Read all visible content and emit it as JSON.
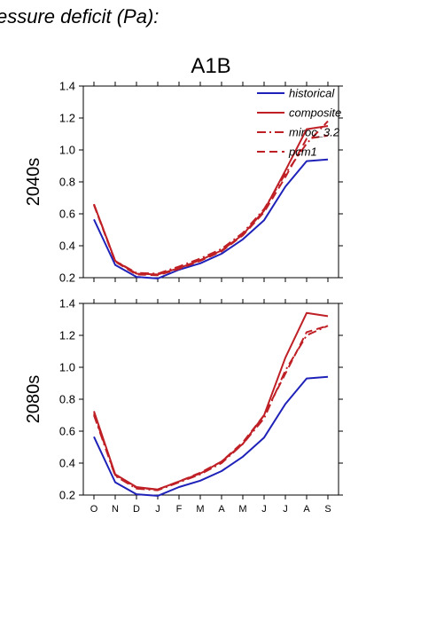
{
  "heading": "essure deficit (Pa):",
  "colors": {
    "historical": "#1f22b8",
    "composite": "#bf2026",
    "miroc_3.2": "#bf2026",
    "pcm1": "#bf2026"
  },
  "chart_data": [
    {
      "type": "line",
      "title": "A1B",
      "ylabel": "2040s",
      "xlabel": "",
      "categories": [
        "O",
        "N",
        "D",
        "J",
        "F",
        "M",
        "A",
        "M",
        "J",
        "J",
        "A",
        "S"
      ],
      "ylim": [
        0.2,
        1.4
      ],
      "yticks": [
        "0.2",
        "0.4",
        "0.6",
        "0.8",
        "1.0",
        "1.2",
        "1.4"
      ],
      "show_x_labels": false,
      "legend": "top-right",
      "grid": false,
      "series": [
        {
          "name": "historical",
          "style": "solid",
          "values": [
            0.565,
            0.28,
            0.205,
            0.195,
            0.25,
            0.29,
            0.35,
            0.44,
            0.56,
            0.77,
            0.93,
            0.94
          ]
        },
        {
          "name": "composite",
          "style": "solid",
          "values": [
            0.66,
            0.305,
            0.225,
            0.22,
            0.26,
            0.31,
            0.37,
            0.47,
            0.62,
            0.87,
            1.13,
            1.15
          ]
        },
        {
          "name": "miroc_3.2",
          "style": "dashdot",
          "values": [
            0.66,
            0.305,
            0.23,
            0.225,
            0.27,
            0.32,
            0.38,
            0.48,
            0.63,
            0.85,
            1.04,
            1.18
          ]
        },
        {
          "name": "pcm1",
          "style": "dashed",
          "values": [
            0.655,
            0.3,
            0.22,
            0.215,
            0.255,
            0.305,
            0.365,
            0.465,
            0.61,
            0.83,
            1.07,
            1.09
          ]
        }
      ]
    },
    {
      "type": "line",
      "title": "",
      "ylabel": "2080s",
      "xlabel": "",
      "categories": [
        "O",
        "N",
        "D",
        "J",
        "F",
        "M",
        "A",
        "M",
        "J",
        "J",
        "A",
        "S"
      ],
      "ylim": [
        0.2,
        1.4
      ],
      "yticks": [
        "0.2",
        "0.4",
        "0.6",
        "0.8",
        "1.0",
        "1.2",
        "1.4"
      ],
      "show_x_labels": true,
      "legend": "none",
      "grid": false,
      "series": [
        {
          "name": "historical",
          "style": "solid",
          "values": [
            0.565,
            0.28,
            0.205,
            0.195,
            0.25,
            0.29,
            0.35,
            0.44,
            0.56,
            0.77,
            0.93,
            0.94
          ]
        },
        {
          "name": "composite",
          "style": "solid",
          "values": [
            0.725,
            0.33,
            0.25,
            0.235,
            0.285,
            0.335,
            0.41,
            0.52,
            0.7,
            1.06,
            1.34,
            1.32
          ]
        },
        {
          "name": "miroc_3.2",
          "style": "dashdot",
          "values": [
            0.7,
            0.32,
            0.24,
            0.23,
            0.28,
            0.33,
            0.4,
            0.52,
            0.68,
            0.98,
            1.2,
            1.26
          ]
        },
        {
          "name": "pcm1",
          "style": "dashed",
          "values": [
            0.71,
            0.325,
            0.245,
            0.235,
            0.285,
            0.34,
            0.41,
            0.53,
            0.7,
            0.96,
            1.22,
            1.26
          ]
        }
      ]
    }
  ]
}
